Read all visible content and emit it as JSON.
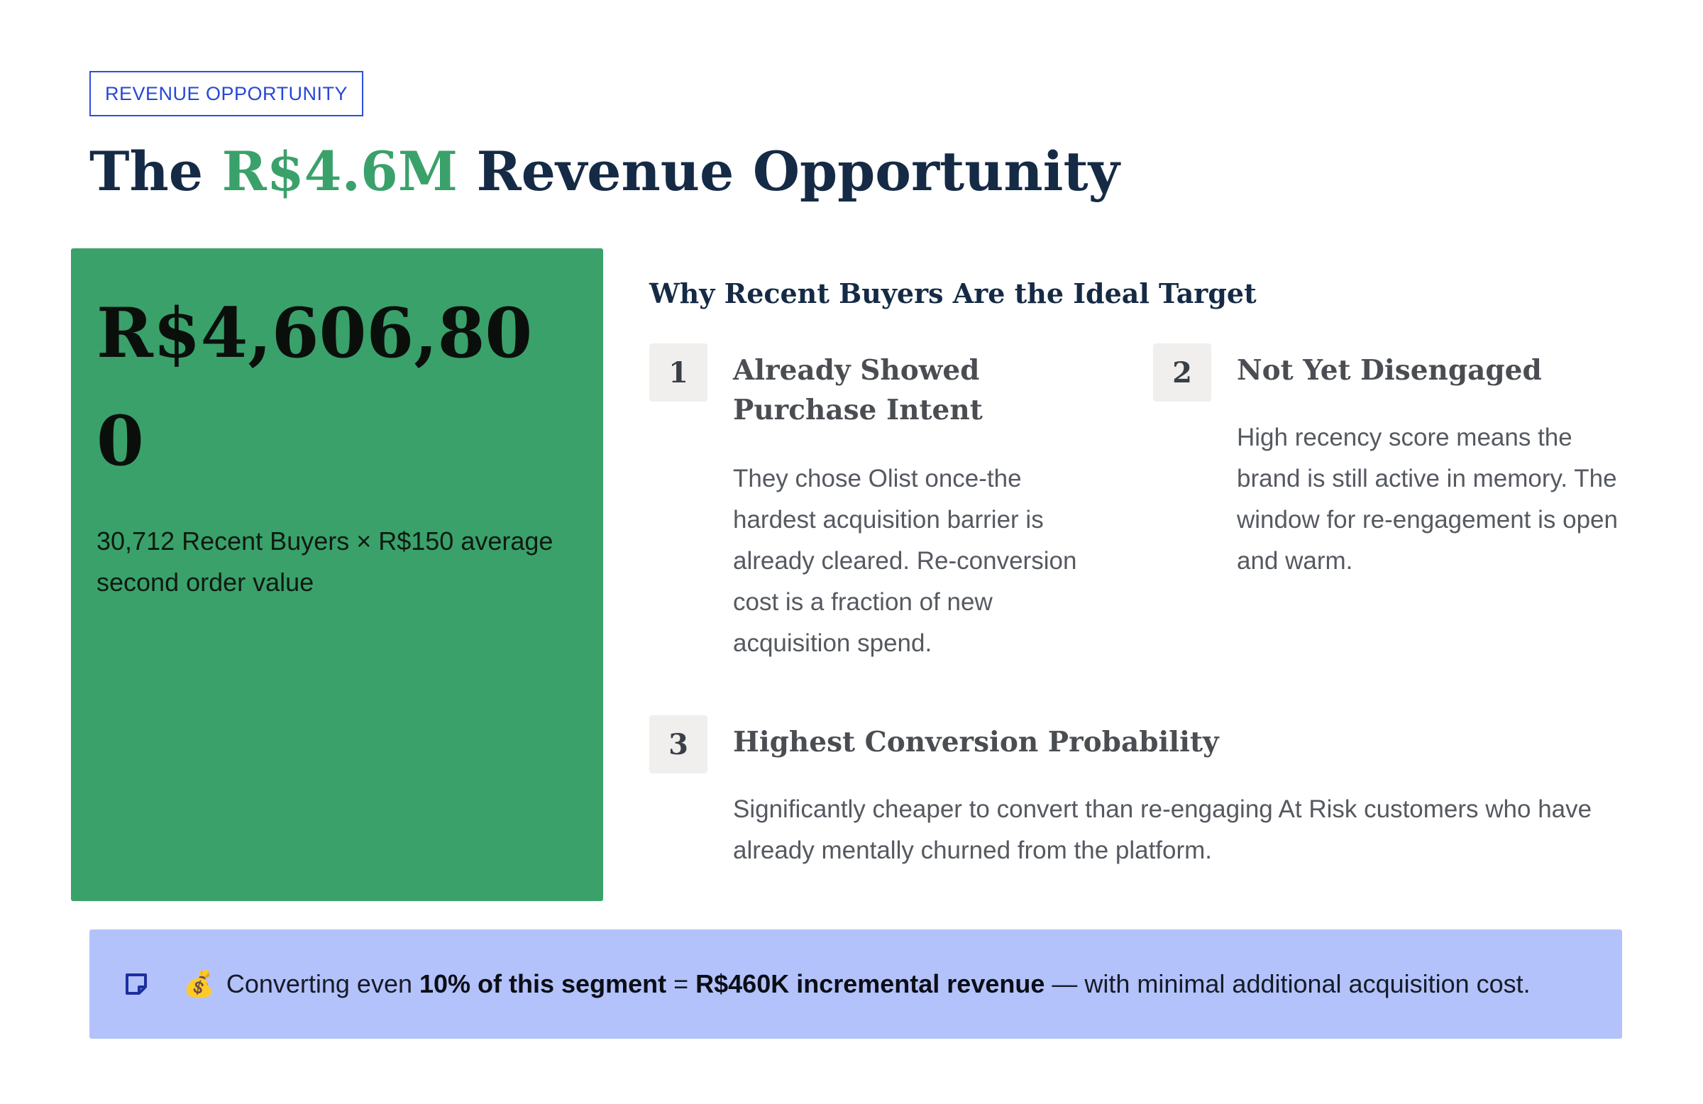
{
  "header": {
    "badge": "REVENUE OPPORTUNITY",
    "title_prefix": "The ",
    "title_highlight": "R$4.6M",
    "title_suffix": " Revenue Opportunity"
  },
  "stat_card": {
    "value": "R$4,606,800",
    "caption": "30,712 Recent Buyers × R$150 average second order value"
  },
  "reasons_section": {
    "heading": "Why Recent Buyers Are the Ideal Target",
    "items": [
      {
        "number": "1",
        "title": "Already Showed Purchase Intent",
        "body": "They chose Olist once-the hardest acquisition barrier is already cleared. Re-conversion cost is a fraction of new acquisition spend."
      },
      {
        "number": "2",
        "title": "Not Yet Disengaged",
        "body": "High recency score means the brand is still active in memory. The window for re-engagement is open and warm."
      },
      {
        "number": "3",
        "title": "Highest Conversion Probability",
        "body": "Significantly cheaper to convert than re-engaging At Risk customers who have already mentally churned from the platform."
      }
    ]
  },
  "callout": {
    "icon": "note-icon",
    "emoji": "💰",
    "text_1": " Converting even ",
    "bold_1": "10% of this segment",
    "text_2": " = ",
    "bold_2": "R$460K incremental revenue",
    "text_3": " — with minimal additional acquisition cost."
  },
  "colors": {
    "accent_green": "#3aa16a",
    "title_navy": "#152a45",
    "badge_blue": "#2747d6",
    "callout_bg": "#b3c2fa"
  }
}
